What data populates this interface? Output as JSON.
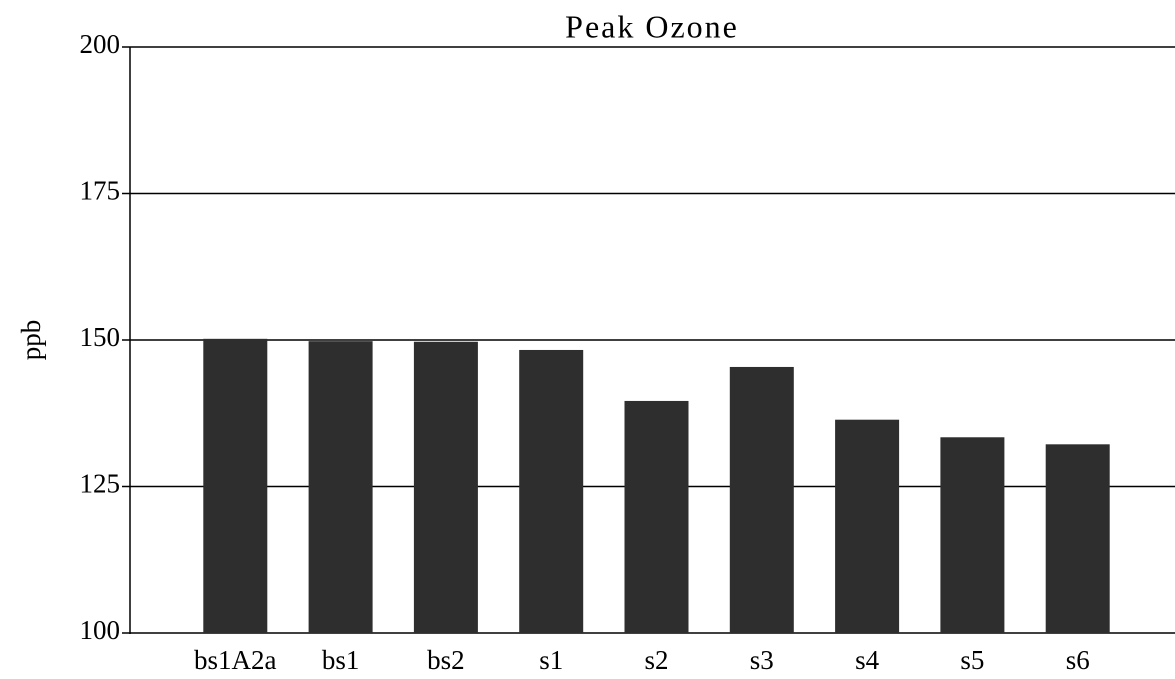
{
  "chart_data": {
    "type": "bar",
    "title": "Peak Ozone",
    "y_label": "ppb",
    "categories": [
      "bs1A2a",
      "bs1",
      "bs2",
      "s1",
      "s2",
      "s3",
      "s4",
      "s5",
      "s6"
    ],
    "values": [
      150.2,
      149.8,
      149.7,
      148.3,
      139.6,
      145.4,
      136.4,
      133.4,
      132.2
    ],
    "color": "#2e2e2e",
    "ylim": [
      100,
      200
    ],
    "yticks": [
      100,
      125,
      150,
      175,
      200
    ],
    "grid": true
  }
}
